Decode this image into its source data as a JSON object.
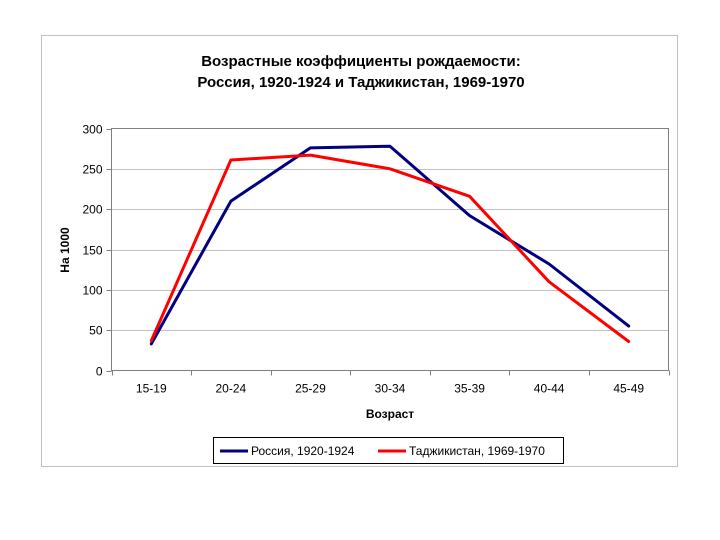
{
  "chart_data": {
    "type": "line",
    "title_lines": [
      "Возрастные коэффициенты рождаемости:",
      "Россия, 1920-1924 и Таджикистан, 1969-1970"
    ],
    "xlabel": "Возраст",
    "ylabel": "На 1000",
    "categories": [
      "15-19",
      "20-24",
      "25-29",
      "30-34",
      "35-39",
      "40-44",
      "45-49"
    ],
    "ylim": [
      0,
      300
    ],
    "yticks": [
      0,
      50,
      100,
      150,
      200,
      250,
      300
    ],
    "grid": true,
    "legend_position": "bottom",
    "series": [
      {
        "name": "Россия, 1920-1924",
        "color": "#000080",
        "values": [
          33,
          210,
          276,
          278,
          192,
          132,
          55
        ]
      },
      {
        "name": "Таджикистан, 1969-1970",
        "color": "#ff0000",
        "values": [
          37,
          261,
          267,
          250,
          216,
          110,
          36
        ]
      }
    ]
  },
  "colors": {
    "frame_border": "#c0c0c0",
    "plot_border": "#808080",
    "gridline": "#c0c0c0"
  }
}
